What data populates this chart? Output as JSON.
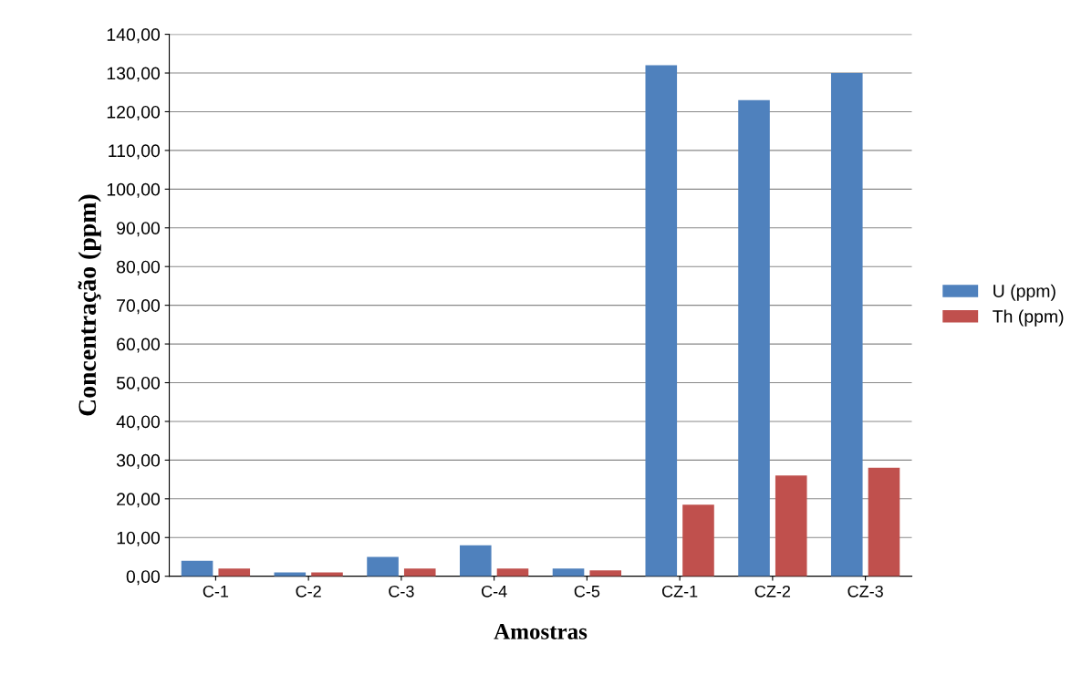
{
  "chart_data": {
    "type": "bar",
    "xlabel": "Amostras",
    "ylabel": "Concentração (ppm)",
    "categories": [
      "C-1",
      "C-2",
      "C-3",
      "C-4",
      "C-5",
      "CZ-1",
      "CZ-2",
      "CZ-3"
    ],
    "series": [
      {
        "name": "U (ppm)",
        "color": "#4f81bd",
        "values": [
          4,
          1,
          5,
          8,
          2,
          132,
          123,
          130
        ]
      },
      {
        "name": "Th (ppm)",
        "color": "#c0504d",
        "values": [
          2,
          1,
          2,
          2,
          1.5,
          18.5,
          26,
          28
        ]
      }
    ],
    "ylim": [
      0,
      140
    ],
    "yticks": [
      {
        "value": 0,
        "label": "0,00"
      },
      {
        "value": 10,
        "label": "10,00"
      },
      {
        "value": 20,
        "label": "20,00"
      },
      {
        "value": 30,
        "label": "30,00"
      },
      {
        "value": 40,
        "label": "40,00"
      },
      {
        "value": 50,
        "label": "50,00"
      },
      {
        "value": 60,
        "label": "60,00"
      },
      {
        "value": 70,
        "label": "70,00"
      },
      {
        "value": 80,
        "label": "80,00"
      },
      {
        "value": 90,
        "label": "90,00"
      },
      {
        "value": 100,
        "label": "100,00"
      },
      {
        "value": 110,
        "label": "110,00"
      },
      {
        "value": 120,
        "label": "120,00"
      },
      {
        "value": 130,
        "label": "130,00"
      },
      {
        "value": 140,
        "label": "140,00"
      }
    ],
    "grid": "y",
    "legend": "right"
  }
}
